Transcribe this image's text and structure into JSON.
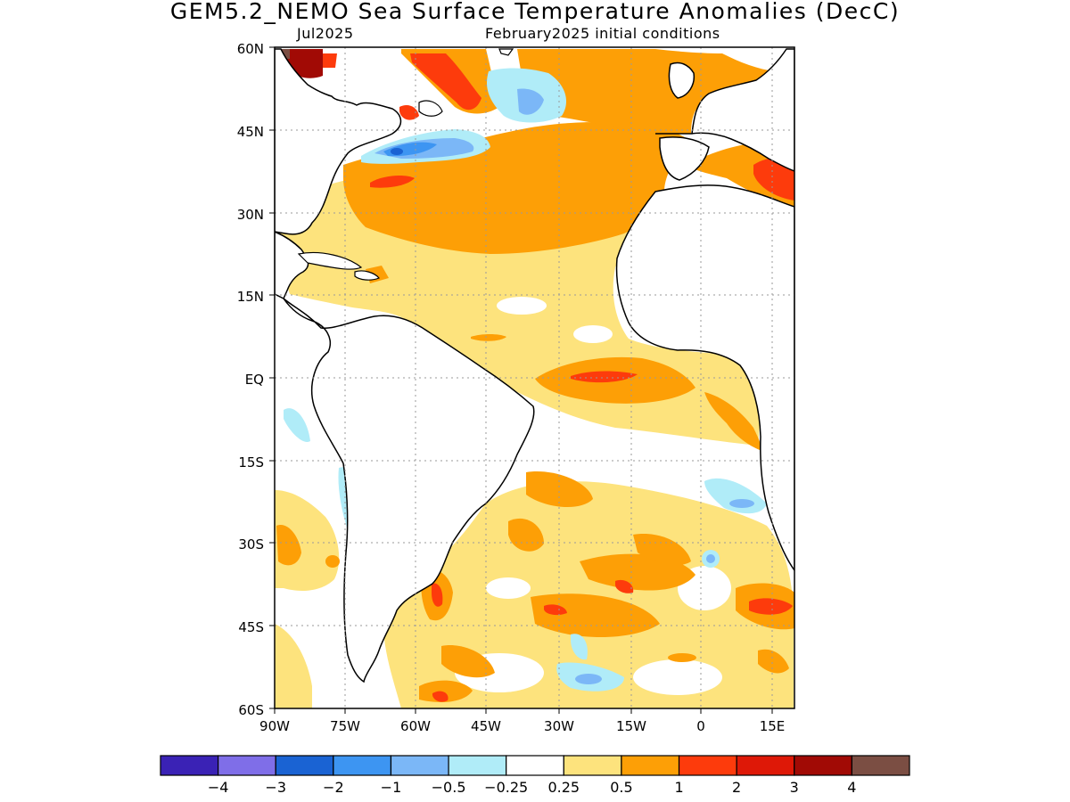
{
  "header": {
    "title": "GEM5.2_NEMO Sea Surface Temperature Anomalies (DecC)",
    "valid_month": "Jul2025",
    "init_label": "February2025 initial conditions"
  },
  "map": {
    "lat_labels": [
      "60N",
      "45N",
      "30N",
      "15N",
      "EQ",
      "15S",
      "30S",
      "45S",
      "60S"
    ],
    "lon_labels": [
      "90W",
      "75W",
      "60W",
      "45W",
      "30W",
      "15W",
      "0",
      "15E"
    ],
    "land_color": "#ffffff",
    "ocean_near_zero_color": "#ffffff"
  },
  "colorbar": {
    "colors": [
      "#3a22b5",
      "#7f6ee8",
      "#1a63d3",
      "#3d95f2",
      "#7bb7f7",
      "#b0ecf8",
      "#ffffff",
      "#fde37d",
      "#fd9f06",
      "#fd3b0c",
      "#de1807",
      "#a10a05",
      "#7b4e43"
    ],
    "tick_labels": [
      "−4",
      "−3",
      "−2",
      "−1",
      "−0.5",
      "−0.25",
      "0.25",
      "0.5",
      "1",
      "2",
      "3",
      "4"
    ]
  }
}
